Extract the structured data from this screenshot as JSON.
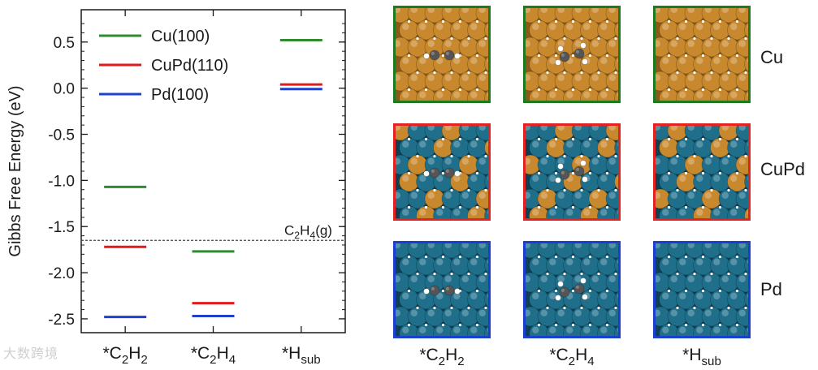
{
  "chart_data": {
    "type": "energy-level-diagram",
    "ylabel": "Gibbs Free Energy (eV)",
    "ylim": [
      -2.65,
      0.85
    ],
    "yticks": [
      "0.5",
      "0.0",
      "-0.5",
      "-1.0",
      "-1.5",
      "-2.0",
      "-2.5"
    ],
    "ytick_values": [
      0.5,
      0.0,
      -0.5,
      -1.0,
      -1.5,
      -2.0,
      -2.5
    ],
    "categories": [
      "*C2H2",
      "*C2H4",
      "*Hsub"
    ],
    "series": [
      {
        "name": "Cu(100)",
        "color": "#2e8b2e",
        "values": [
          -1.07,
          -1.77,
          0.52
        ]
      },
      {
        "name": "CuPd(110)",
        "color": "#e31a1c",
        "values": [
          -1.72,
          -2.33,
          0.04
        ]
      },
      {
        "name": "Pd(100)",
        "color": "#1f3fcf",
        "values": [
          -2.48,
          -2.47,
          -0.01
        ]
      }
    ],
    "reference_line": {
      "label": "C2H4(g)",
      "value": -1.65
    },
    "legend_position": "top-left"
  },
  "panels": {
    "rows": [
      {
        "label": "Cu",
        "border": "#1f7a1f"
      },
      {
        "label": "CuPd",
        "border": "#e32222"
      },
      {
        "label": "Pd",
        "border": "#1a3fcf"
      }
    ],
    "columns": [
      "*C2H2",
      "*C2H4",
      "*Hsub"
    ],
    "colors": {
      "cu": "#c8892e",
      "pd": "#1f6f8b",
      "carbon": "#555555",
      "hydrogen": "#ffffff"
    }
  },
  "watermark": "大数跨境"
}
